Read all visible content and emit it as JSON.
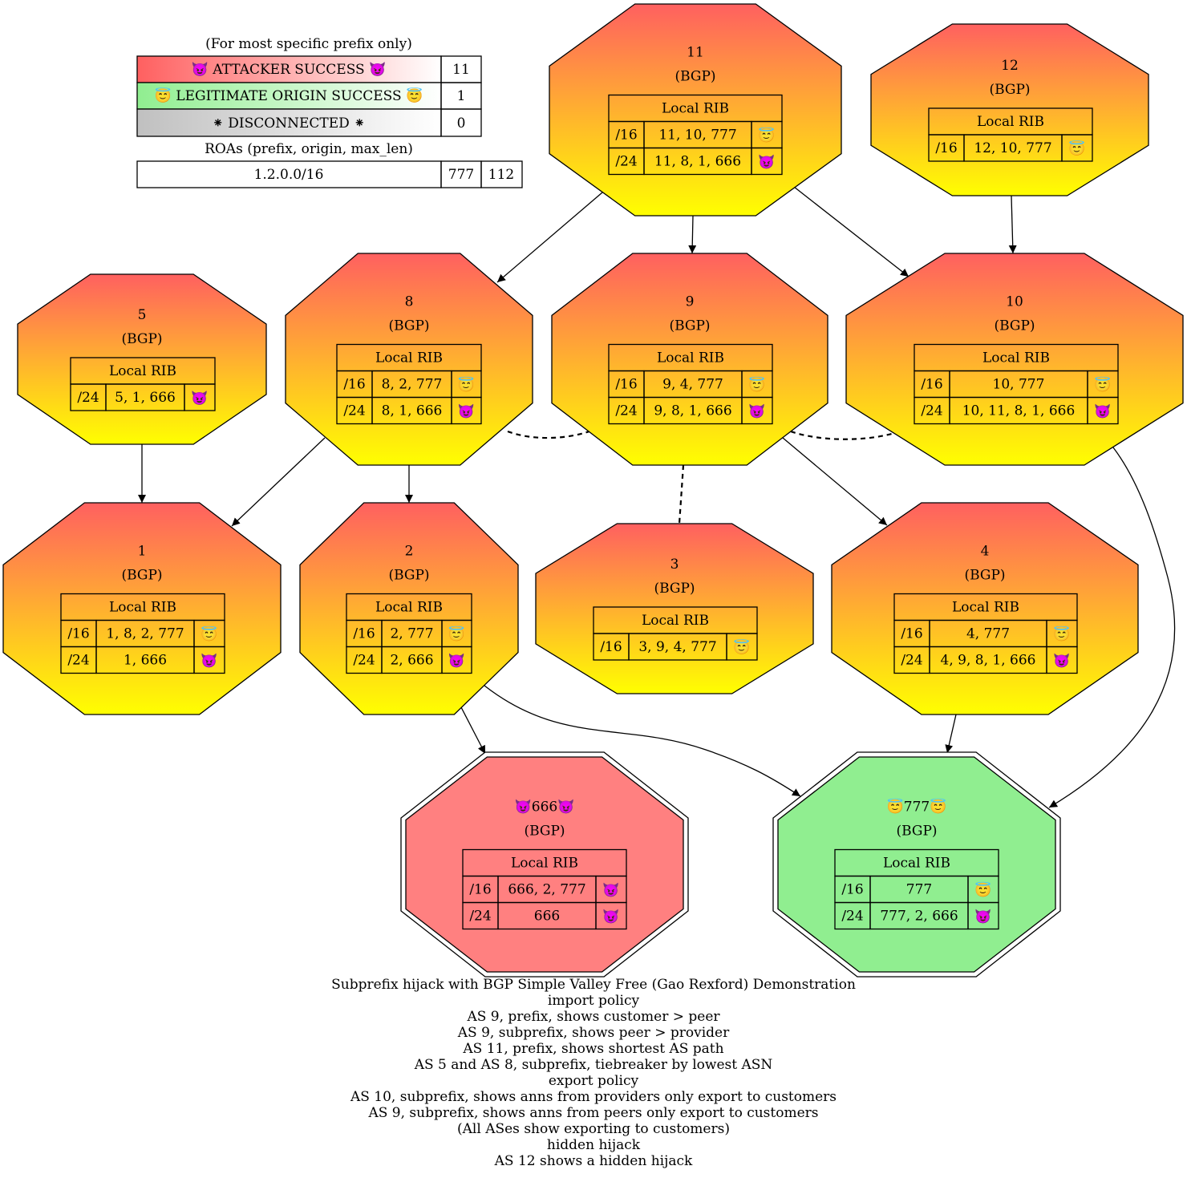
{
  "legend": {
    "header": "(For most specific prefix only)",
    "rows": [
      {
        "label": "😈 ATTACKER SUCCESS 😈",
        "count": "11",
        "gradient_from": "#ff6060",
        "gradient_to": "#ffffff"
      },
      {
        "label": "😇 LEGITIMATE ORIGIN SUCCESS 😇",
        "count": "1",
        "gradient_from": "#90ee90",
        "gradient_to": "#ffffff"
      },
      {
        "label": "⁕ DISCONNECTED ⁕",
        "count": "0",
        "gradient_from": "#c0c0c0",
        "gradient_to": "#ffffff"
      }
    ],
    "roa_header": "ROAs (prefix, origin, max_len)",
    "roa": {
      "prefix": "1.2.0.0/16",
      "origin": "777",
      "max_len": "112"
    }
  },
  "colors": {
    "gradient_top": "#ff6060",
    "gradient_bottom": "#ffff00",
    "attacker_fill": "#ff8080",
    "victim_fill": "#90ee90"
  },
  "nodes": [
    {
      "id": "11",
      "title": "11",
      "subtitle": "(BGP)",
      "rib_title": "Local RIB",
      "style": "gradient",
      "rows": [
        {
          "prefix": "/16",
          "path": "11, 10, 777",
          "mark": "😇"
        },
        {
          "prefix": "/24",
          "path": "11, 8, 1, 666",
          "mark": "😈"
        }
      ]
    },
    {
      "id": "12",
      "title": "12",
      "subtitle": "(BGP)",
      "rib_title": "Local RIB",
      "style": "gradient",
      "rows": [
        {
          "prefix": "/16",
          "path": "12, 10, 777",
          "mark": "😇"
        }
      ]
    },
    {
      "id": "5",
      "title": "5",
      "subtitle": "(BGP)",
      "rib_title": "Local RIB",
      "style": "gradient",
      "rows": [
        {
          "prefix": "/24",
          "path": "5, 1, 666",
          "mark": "😈"
        }
      ]
    },
    {
      "id": "8",
      "title": "8",
      "subtitle": "(BGP)",
      "rib_title": "Local RIB",
      "style": "gradient",
      "rows": [
        {
          "prefix": "/16",
          "path": "8, 2, 777",
          "mark": "😇"
        },
        {
          "prefix": "/24",
          "path": "8, 1, 666",
          "mark": "😈"
        }
      ]
    },
    {
      "id": "9",
      "title": "9",
      "subtitle": "(BGP)",
      "rib_title": "Local RIB",
      "style": "gradient",
      "rows": [
        {
          "prefix": "/16",
          "path": "9, 4, 777",
          "mark": "😇"
        },
        {
          "prefix": "/24",
          "path": "9, 8, 1, 666",
          "mark": "😈"
        }
      ]
    },
    {
      "id": "10",
      "title": "10",
      "subtitle": "(BGP)",
      "rib_title": "Local RIB",
      "style": "gradient",
      "rows": [
        {
          "prefix": "/16",
          "path": "10, 777",
          "mark": "😇"
        },
        {
          "prefix": "/24",
          "path": "10, 11, 8, 1, 666",
          "mark": "😈"
        }
      ]
    },
    {
      "id": "1",
      "title": "1",
      "subtitle": "(BGP)",
      "rib_title": "Local RIB",
      "style": "gradient",
      "rows": [
        {
          "prefix": "/16",
          "path": "1, 8, 2, 777",
          "mark": "😇"
        },
        {
          "prefix": "/24",
          "path": "1, 666",
          "mark": "😈"
        }
      ]
    },
    {
      "id": "2",
      "title": "2",
      "subtitle": "(BGP)",
      "rib_title": "Local RIB",
      "style": "gradient",
      "rows": [
        {
          "prefix": "/16",
          "path": "2, 777",
          "mark": "😇"
        },
        {
          "prefix": "/24",
          "path": "2, 666",
          "mark": "😈"
        }
      ]
    },
    {
      "id": "3",
      "title": "3",
      "subtitle": "(BGP)",
      "rib_title": "Local RIB",
      "style": "gradient",
      "rows": [
        {
          "prefix": "/16",
          "path": "3, 9, 4, 777",
          "mark": "😇"
        }
      ]
    },
    {
      "id": "4",
      "title": "4",
      "subtitle": "(BGP)",
      "rib_title": "Local RIB",
      "style": "gradient",
      "rows": [
        {
          "prefix": "/16",
          "path": "4, 777",
          "mark": "😇"
        },
        {
          "prefix": "/24",
          "path": "4, 9, 8, 1, 666",
          "mark": "😈"
        }
      ]
    },
    {
      "id": "666",
      "title": "😈666😈",
      "subtitle": "(BGP)",
      "rib_title": "Local RIB",
      "style": "attacker",
      "rows": [
        {
          "prefix": "/16",
          "path": "666, 2, 777",
          "mark": "😈"
        },
        {
          "prefix": "/24",
          "path": "666",
          "mark": "😈"
        }
      ]
    },
    {
      "id": "777",
      "title": "😇777😇",
      "subtitle": "(BGP)",
      "rib_title": "Local RIB",
      "style": "victim",
      "rows": [
        {
          "prefix": "/16",
          "path": "777",
          "mark": "😇"
        },
        {
          "prefix": "/24",
          "path": "777, 2, 666",
          "mark": "😈"
        }
      ]
    }
  ],
  "edges": [
    {
      "from": "11",
      "to": "8",
      "type": "provider-customer"
    },
    {
      "from": "11",
      "to": "9",
      "type": "provider-customer"
    },
    {
      "from": "11",
      "to": "10",
      "type": "provider-customer"
    },
    {
      "from": "12",
      "to": "10",
      "type": "provider-customer"
    },
    {
      "from": "5",
      "to": "1",
      "type": "provider-customer"
    },
    {
      "from": "8",
      "to": "1",
      "type": "provider-customer"
    },
    {
      "from": "8",
      "to": "2",
      "type": "provider-customer"
    },
    {
      "from": "9",
      "to": "4",
      "type": "provider-customer"
    },
    {
      "from": "2",
      "to": "666",
      "type": "provider-customer"
    },
    {
      "from": "2",
      "to": "777",
      "type": "provider-customer"
    },
    {
      "from": "4",
      "to": "777",
      "type": "provider-customer"
    },
    {
      "from": "10",
      "to": "777",
      "type": "provider-customer"
    },
    {
      "from": "8",
      "to": "9",
      "type": "peer"
    },
    {
      "from": "9",
      "to": "10",
      "type": "peer"
    },
    {
      "from": "9",
      "to": "3",
      "type": "peer"
    }
  ],
  "caption": [
    "Subprefix hijack with BGP Simple Valley Free (Gao Rexford) Demonstration",
    "import policy",
    "AS 9, prefix, shows customer > peer",
    "AS 9, subprefix, shows peer > provider",
    "AS 11, prefix, shows shortest AS path",
    "AS 5 and AS 8, subprefix, tiebreaker by lowest ASN",
    "export policy",
    "AS 10, subprefix, shows anns from providers only export to customers",
    "AS 9, subprefix, shows anns from peers only export to customers",
    "(All ASes show exporting to customers)",
    "hidden hijack",
    "AS 12 shows a hidden hijack"
  ]
}
